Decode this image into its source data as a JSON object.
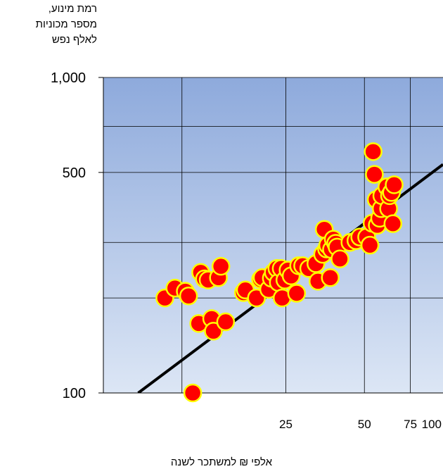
{
  "chart_data": {
    "type": "scatter",
    "ylabel_lines": [
      "רמת מינוע,",
      "מספר מכוניות",
      "לאלף נפש"
    ],
    "xlabel": "אלפי ₪ למשתכר לשנה",
    "y_ticks": [
      {
        "value": 1000,
        "label": "1,000"
      },
      {
        "value": 500,
        "label": "500"
      },
      {
        "value": 100,
        "label": "100"
      }
    ],
    "x_ticks": [
      {
        "value": 25,
        "label": "25"
      },
      {
        "value": 50,
        "label": "50"
      },
      {
        "value": 75,
        "label": "75"
      },
      {
        "value": 100,
        "label": "100"
      }
    ],
    "x_scale": "log",
    "y_scale": "log",
    "xlim": [
      5,
      100
    ],
    "ylim": [
      100,
      1000
    ],
    "grid": true,
    "marker_fill": "#ff0000",
    "marker_edge": "#ffff00",
    "trend_color": "#000000",
    "background_top": "#8eaadc",
    "background_bottom": "#dce6f5",
    "trendline": {
      "x": [
        6.8,
        100
      ],
      "y": [
        100,
        530
      ]
    },
    "points": [
      {
        "x": 8.6,
        "y": 200
      },
      {
        "x": 9.4,
        "y": 215
      },
      {
        "x": 10.3,
        "y": 210
      },
      {
        "x": 10.6,
        "y": 203
      },
      {
        "x": 11.0,
        "y": 100
      },
      {
        "x": 11.6,
        "y": 166
      },
      {
        "x": 11.8,
        "y": 241
      },
      {
        "x": 12.2,
        "y": 230
      },
      {
        "x": 12.6,
        "y": 228
      },
      {
        "x": 13.0,
        "y": 172
      },
      {
        "x": 13.2,
        "y": 157
      },
      {
        "x": 13.8,
        "y": 232
      },
      {
        "x": 14.1,
        "y": 252
      },
      {
        "x": 14.7,
        "y": 168
      },
      {
        "x": 17.2,
        "y": 208
      },
      {
        "x": 17.5,
        "y": 212
      },
      {
        "x": 19.3,
        "y": 200
      },
      {
        "x": 20.0,
        "y": 229
      },
      {
        "x": 20.3,
        "y": 232
      },
      {
        "x": 21.5,
        "y": 213
      },
      {
        "x": 22.0,
        "y": 231
      },
      {
        "x": 22.4,
        "y": 241
      },
      {
        "x": 23.1,
        "y": 248
      },
      {
        "x": 23.4,
        "y": 224
      },
      {
        "x": 24.0,
        "y": 248
      },
      {
        "x": 24.2,
        "y": 200
      },
      {
        "x": 24.8,
        "y": 228
      },
      {
        "x": 25.5,
        "y": 245
      },
      {
        "x": 26.2,
        "y": 235
      },
      {
        "x": 27.5,
        "y": 207
      },
      {
        "x": 28.0,
        "y": 253
      },
      {
        "x": 29.0,
        "y": 253
      },
      {
        "x": 30.6,
        "y": 248
      },
      {
        "x": 32.6,
        "y": 257
      },
      {
        "x": 33.2,
        "y": 226
      },
      {
        "x": 34.6,
        "y": 275
      },
      {
        "x": 35.1,
        "y": 330
      },
      {
        "x": 35.8,
        "y": 286
      },
      {
        "x": 36.2,
        "y": 294
      },
      {
        "x": 37.0,
        "y": 232
      },
      {
        "x": 37.4,
        "y": 285
      },
      {
        "x": 38.0,
        "y": 307
      },
      {
        "x": 38.8,
        "y": 298
      },
      {
        "x": 39.3,
        "y": 290
      },
      {
        "x": 40.3,
        "y": 266
      },
      {
        "x": 44.0,
        "y": 300
      },
      {
        "x": 46.4,
        "y": 304
      },
      {
        "x": 48.0,
        "y": 312
      },
      {
        "x": 51.0,
        "y": 312
      },
      {
        "x": 52.5,
        "y": 294
      },
      {
        "x": 53.5,
        "y": 345
      },
      {
        "x": 54.0,
        "y": 582
      },
      {
        "x": 54.6,
        "y": 493
      },
      {
        "x": 55.5,
        "y": 410
      },
      {
        "x": 56.0,
        "y": 340
      },
      {
        "x": 57.2,
        "y": 358
      },
      {
        "x": 58.0,
        "y": 384
      },
      {
        "x": 58.3,
        "y": 422
      },
      {
        "x": 61.0,
        "y": 450
      },
      {
        "x": 61.9,
        "y": 384
      },
      {
        "x": 62.4,
        "y": 422
      },
      {
        "x": 63.5,
        "y": 432
      },
      {
        "x": 64.3,
        "y": 344
      },
      {
        "x": 65.0,
        "y": 457
      }
    ]
  }
}
